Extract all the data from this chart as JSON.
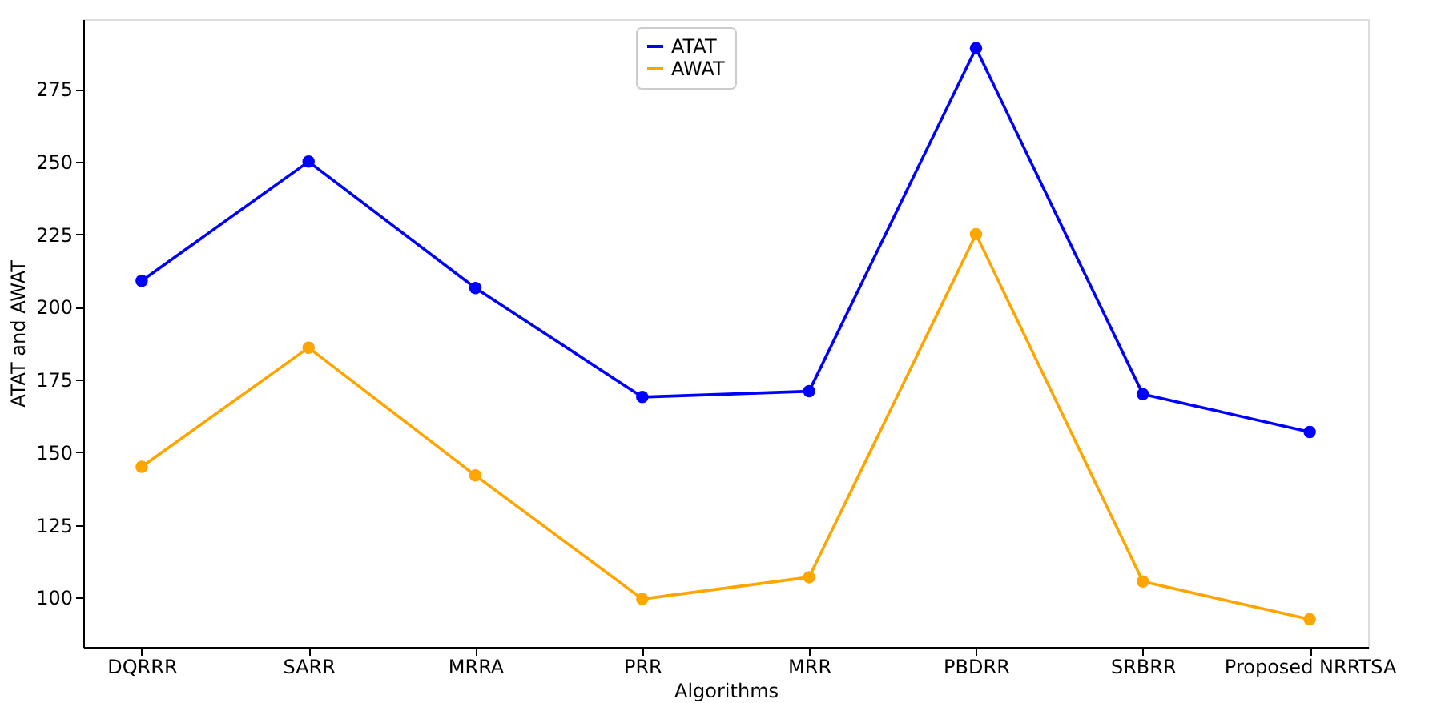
{
  "chart_data": {
    "type": "line",
    "xlabel": "Algorithms",
    "ylabel": "ATAT and AWAT",
    "categories": [
      "DQRRR",
      "SARR",
      "MRRA",
      "PRR",
      "MRR",
      "PBDRR",
      "SRBRR",
      "Proposed NRRTSA"
    ],
    "series": [
      {
        "name": "ATAT",
        "color": "#0000ff",
        "values": [
          209,
          250,
          206.5,
          169,
          171,
          289,
          170,
          157
        ]
      },
      {
        "name": "AWAT",
        "color": "#ffa500",
        "values": [
          145,
          186,
          142,
          99.5,
          107,
          225,
          105.5,
          92.5
        ]
      }
    ],
    "ylim": [
      83,
      299
    ],
    "yticks": [
      100,
      125,
      150,
      175,
      200,
      225,
      250,
      275
    ],
    "grid": false,
    "legend": "top",
    "marker": "circle",
    "line_style": "solid"
  }
}
